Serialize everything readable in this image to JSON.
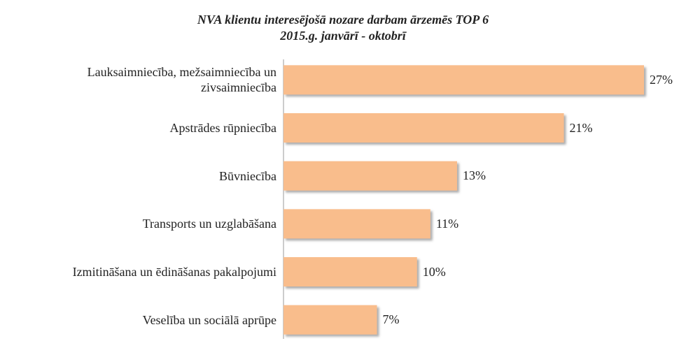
{
  "chart_data": {
    "type": "bar",
    "orientation": "horizontal",
    "title": "NVA klientu interesējošā nozare darbam ārzemēs TOP 6",
    "subtitle": "2015.g. janvārī - oktobrī",
    "categories": [
      "Lauksaimniecība, mežsaimniecība un zivsaimniecība",
      "Apstrādes rūpniecība",
      "Būvniecība",
      "Transports un uzglabāšana",
      "Izmitināšana un ēdināšanas pakalpojumi",
      "Veselība un sociālā aprūpe"
    ],
    "values": [
      27,
      21,
      13,
      11,
      10,
      7
    ],
    "value_labels": [
      "27%",
      "21%",
      "13%",
      "11%",
      "10%",
      "7%"
    ],
    "color": "#f9bd8c"
  }
}
